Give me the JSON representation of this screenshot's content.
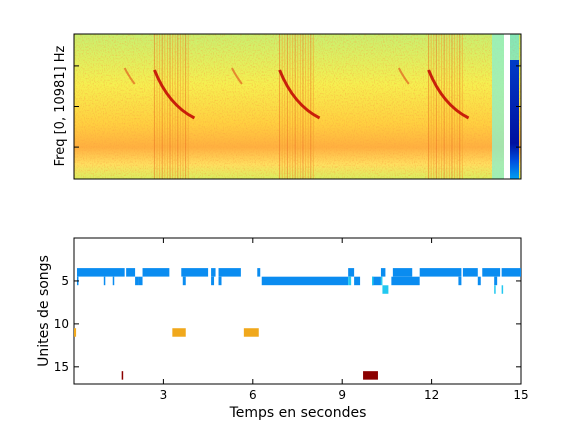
{
  "chart_data": [
    {
      "type": "heatmap",
      "ylabel": "Freq [0, 10981] Hz",
      "xlim": [
        0,
        15
      ],
      "ylim": [
        0,
        10981
      ],
      "colormap": "jet",
      "grid": false,
      "harmonic_stacks_s": [
        2.9,
        7.1,
        12.1
      ],
      "colorbar": true
    },
    {
      "type": "scatter",
      "xlabel": "Temps en secondes",
      "ylabel": "Unites de songs",
      "xlim": [
        0,
        15
      ],
      "ylim": [
        17,
        0
      ],
      "xticks": [
        3,
        6,
        9,
        12,
        15
      ],
      "yticks": [
        5,
        10,
        15
      ],
      "grid": false,
      "units": [
        {
          "unit": 4,
          "color": "#0a8cf0",
          "segments": [
            [
              0.1,
              1.7
            ],
            [
              1.75,
              2.05
            ],
            [
              2.3,
              3.2
            ],
            [
              3.6,
              4.5
            ],
            [
              4.6,
              4.75
            ],
            [
              4.85,
              5.6
            ],
            [
              6.15,
              6.25
            ],
            [
              9.2,
              9.4
            ],
            [
              10.3,
              10.45
            ],
            [
              10.7,
              11.35
            ],
            [
              11.6,
              13.0
            ],
            [
              13.05,
              13.55
            ],
            [
              13.7,
              14.3
            ],
            [
              14.35,
              15.0
            ]
          ]
        },
        {
          "unit": 5,
          "color": "#0a8cf0",
          "segments": [
            [
              0.1,
              0.15
            ],
            [
              1.0,
              1.05
            ],
            [
              1.3,
              1.35
            ],
            [
              2.05,
              2.15
            ],
            [
              2.15,
              2.3
            ],
            [
              3.65,
              3.75
            ],
            [
              4.6,
              4.7
            ],
            [
              4.85,
              4.95
            ],
            [
              6.3,
              9.2
            ],
            [
              9.4,
              9.6
            ],
            [
              10.0,
              10.3
            ],
            [
              10.65,
              11.6
            ],
            [
              12.9,
              13.0
            ],
            [
              13.55,
              13.65
            ],
            [
              14.1,
              14.2
            ]
          ]
        },
        {
          "unit": 5,
          "color": "#22c8f0",
          "segments": [
            [
              9.2,
              9.3
            ],
            [
              10.0,
              10.05
            ],
            [
              10.3,
              10.35
            ]
          ]
        },
        {
          "unit": 6,
          "color": "#22c8f0",
          "segments": [
            [
              10.35,
              10.55
            ],
            [
              14.1,
              14.15
            ],
            [
              14.35,
              14.4
            ]
          ]
        },
        {
          "unit": 11,
          "color": "#f0a81c",
          "segments": [
            [
              0.0,
              0.07
            ],
            [
              3.3,
              3.75
            ],
            [
              5.7,
              6.2
            ]
          ]
        },
        {
          "unit": 16,
          "color": "#8b0000",
          "segments": [
            [
              1.6,
              1.65
            ],
            [
              9.7,
              10.2
            ]
          ]
        }
      ]
    }
  ]
}
